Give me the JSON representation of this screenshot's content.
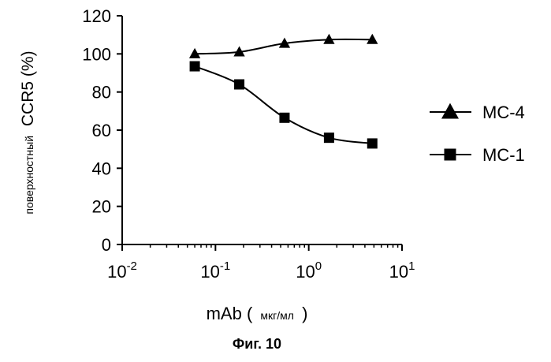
{
  "chart_data": {
    "type": "line",
    "xscale": "log",
    "xlim": [
      0.01,
      10
    ],
    "ylim": [
      0,
      120
    ],
    "xticks": [
      {
        "value": 0.01,
        "base": "10",
        "exp": "-2"
      },
      {
        "value": 0.1,
        "base": "10",
        "exp": "-1"
      },
      {
        "value": 1,
        "base": "10",
        "exp": "0"
      },
      {
        "value": 10,
        "base": "10",
        "exp": "1"
      }
    ],
    "yticks": [
      0,
      20,
      40,
      60,
      80,
      100,
      120
    ],
    "ylabel_prefix": "поверхностный",
    "ylabel_main": "CCR5 (%)",
    "xlabel_main": "mAb (",
    "xlabel_unit": "мкг/мл",
    "xlabel_close": ")",
    "grid": false,
    "legend_position": "right",
    "series": [
      {
        "name": "MC-4",
        "marker": "triangle",
        "x": [
          0.06,
          0.18,
          0.55,
          1.65,
          4.8
        ],
        "y": [
          100,
          101,
          105.5,
          107.5,
          107.5
        ]
      },
      {
        "name": "MC-1",
        "marker": "square",
        "x": [
          0.06,
          0.18,
          0.55,
          1.65,
          4.8
        ],
        "y": [
          93.5,
          84,
          66.5,
          56,
          53
        ]
      }
    ]
  },
  "caption": "Фиг. 10"
}
